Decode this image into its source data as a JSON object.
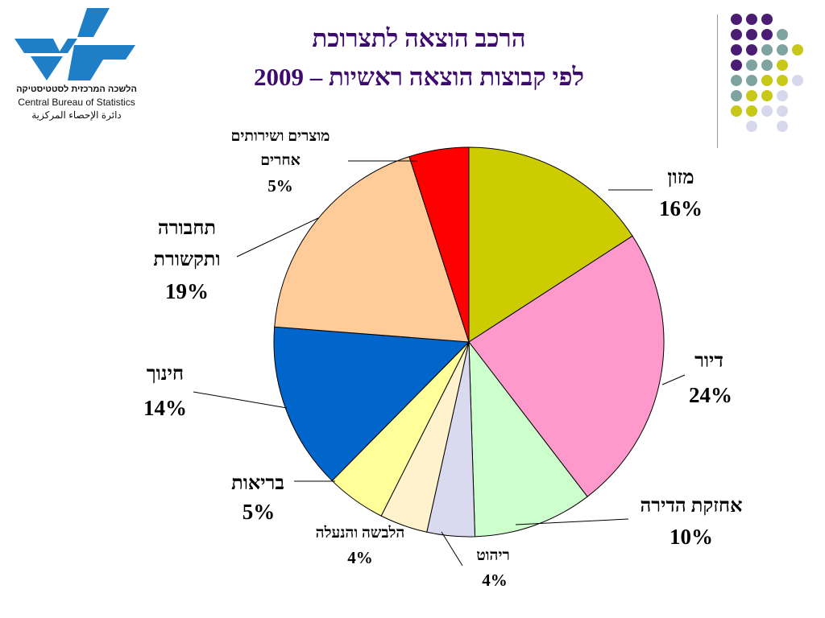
{
  "org": {
    "name_he": "הלשכה המרכזית לסטטיסטיקה",
    "name_en": "Central Bureau of Statistics",
    "name_ar": "دائرة الإحصاء المركزية"
  },
  "title_line1": "הרכב הוצאה לתצרוכת",
  "title_line2": "לפי קבוצות הוצאה ראשיות – 2009",
  "colors": {
    "title": "#3d0a6e",
    "dot_purple": "#4b1c74",
    "dot_teal": "#7fa3a0",
    "dot_olive": "#c8c819",
    "dot_lavender": "#d8d8ec"
  },
  "chart_data": {
    "type": "pie",
    "title": "הרכב הוצאה לתצרוכת לפי קבוצות הוצאה ראשיות – 2009",
    "slices": [
      {
        "label": "מזון",
        "value": 16,
        "value_text": "16%",
        "color": "#cccc00"
      },
      {
        "label": "דיור",
        "value": 24,
        "value_text": "24%",
        "color": "#ff99cc"
      },
      {
        "label": "אחזקת הדירה",
        "value": 10,
        "value_text": "10%",
        "color": "#ccffcc"
      },
      {
        "label": "ריהוט",
        "value": 4,
        "value_text": "4%",
        "color": "#d9d9f0"
      },
      {
        "label": "הלבשה והנעלה",
        "value": 4,
        "value_text": "4%",
        "color": "#fff2cc"
      },
      {
        "label": "בריאות",
        "value": 5,
        "value_text": "5%",
        "color": "#ffff99"
      },
      {
        "label": "חינוך",
        "value": 14,
        "value_text": "14%",
        "color": "#0066cc"
      },
      {
        "label": "תחבורה ותקשורת",
        "value": 19,
        "value_text": "19%",
        "color": "#ffcc99"
      },
      {
        "label": "מוצרים ושירותים אחרים",
        "value": 5,
        "value_text": "5%",
        "color": "#ff0000"
      }
    ]
  }
}
